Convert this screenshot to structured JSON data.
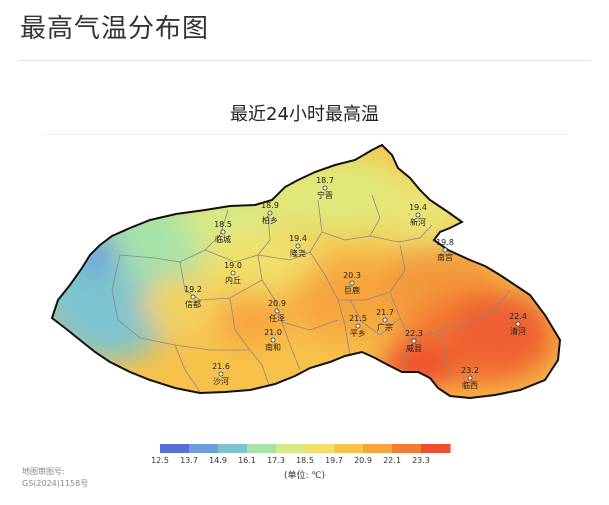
{
  "page": {
    "title": "最高气温分布图"
  },
  "map": {
    "title": "最近24小时最高温",
    "stations": [
      {
        "name": "宁晋",
        "value": "18.7"
      },
      {
        "name": "柏乡",
        "value": "18.9"
      },
      {
        "name": "临城",
        "value": "18.5"
      },
      {
        "name": "新河",
        "value": "19.4"
      },
      {
        "name": "隆尧",
        "value": "19.4"
      },
      {
        "name": "南宫",
        "value": "19.8"
      },
      {
        "name": "内丘",
        "value": "19.0"
      },
      {
        "name": "巨鹿",
        "value": "20.3"
      },
      {
        "name": "信都",
        "value": "19.2"
      },
      {
        "name": "任泽",
        "value": "20.9"
      },
      {
        "name": "平乡",
        "value": "21.5"
      },
      {
        "name": "广宗",
        "value": "21.7"
      },
      {
        "name": "清河",
        "value": "22.4"
      },
      {
        "name": "南和",
        "value": "21.0"
      },
      {
        "name": "威县",
        "value": "22.3"
      },
      {
        "name": "沙河",
        "value": "21.6"
      },
      {
        "name": "临西",
        "value": "23.2"
      }
    ],
    "review_label": "地图审图号:",
    "review_code": "GS(2024)1158号"
  },
  "legend": {
    "ticks": [
      "12.5",
      "13.7",
      "14.9",
      "16.1",
      "17.3",
      "18.5",
      "19.7",
      "20.9",
      "22.1",
      "23.3"
    ],
    "colors": [
      "#5a6fd6",
      "#6d9ddb",
      "#7cc4cf",
      "#a6e3a8",
      "#d7ea86",
      "#f0e06b",
      "#f7c24b",
      "#f6a53c",
      "#f37b32",
      "#ee4f2f"
    ],
    "unit": "(单位: ℃)"
  }
}
